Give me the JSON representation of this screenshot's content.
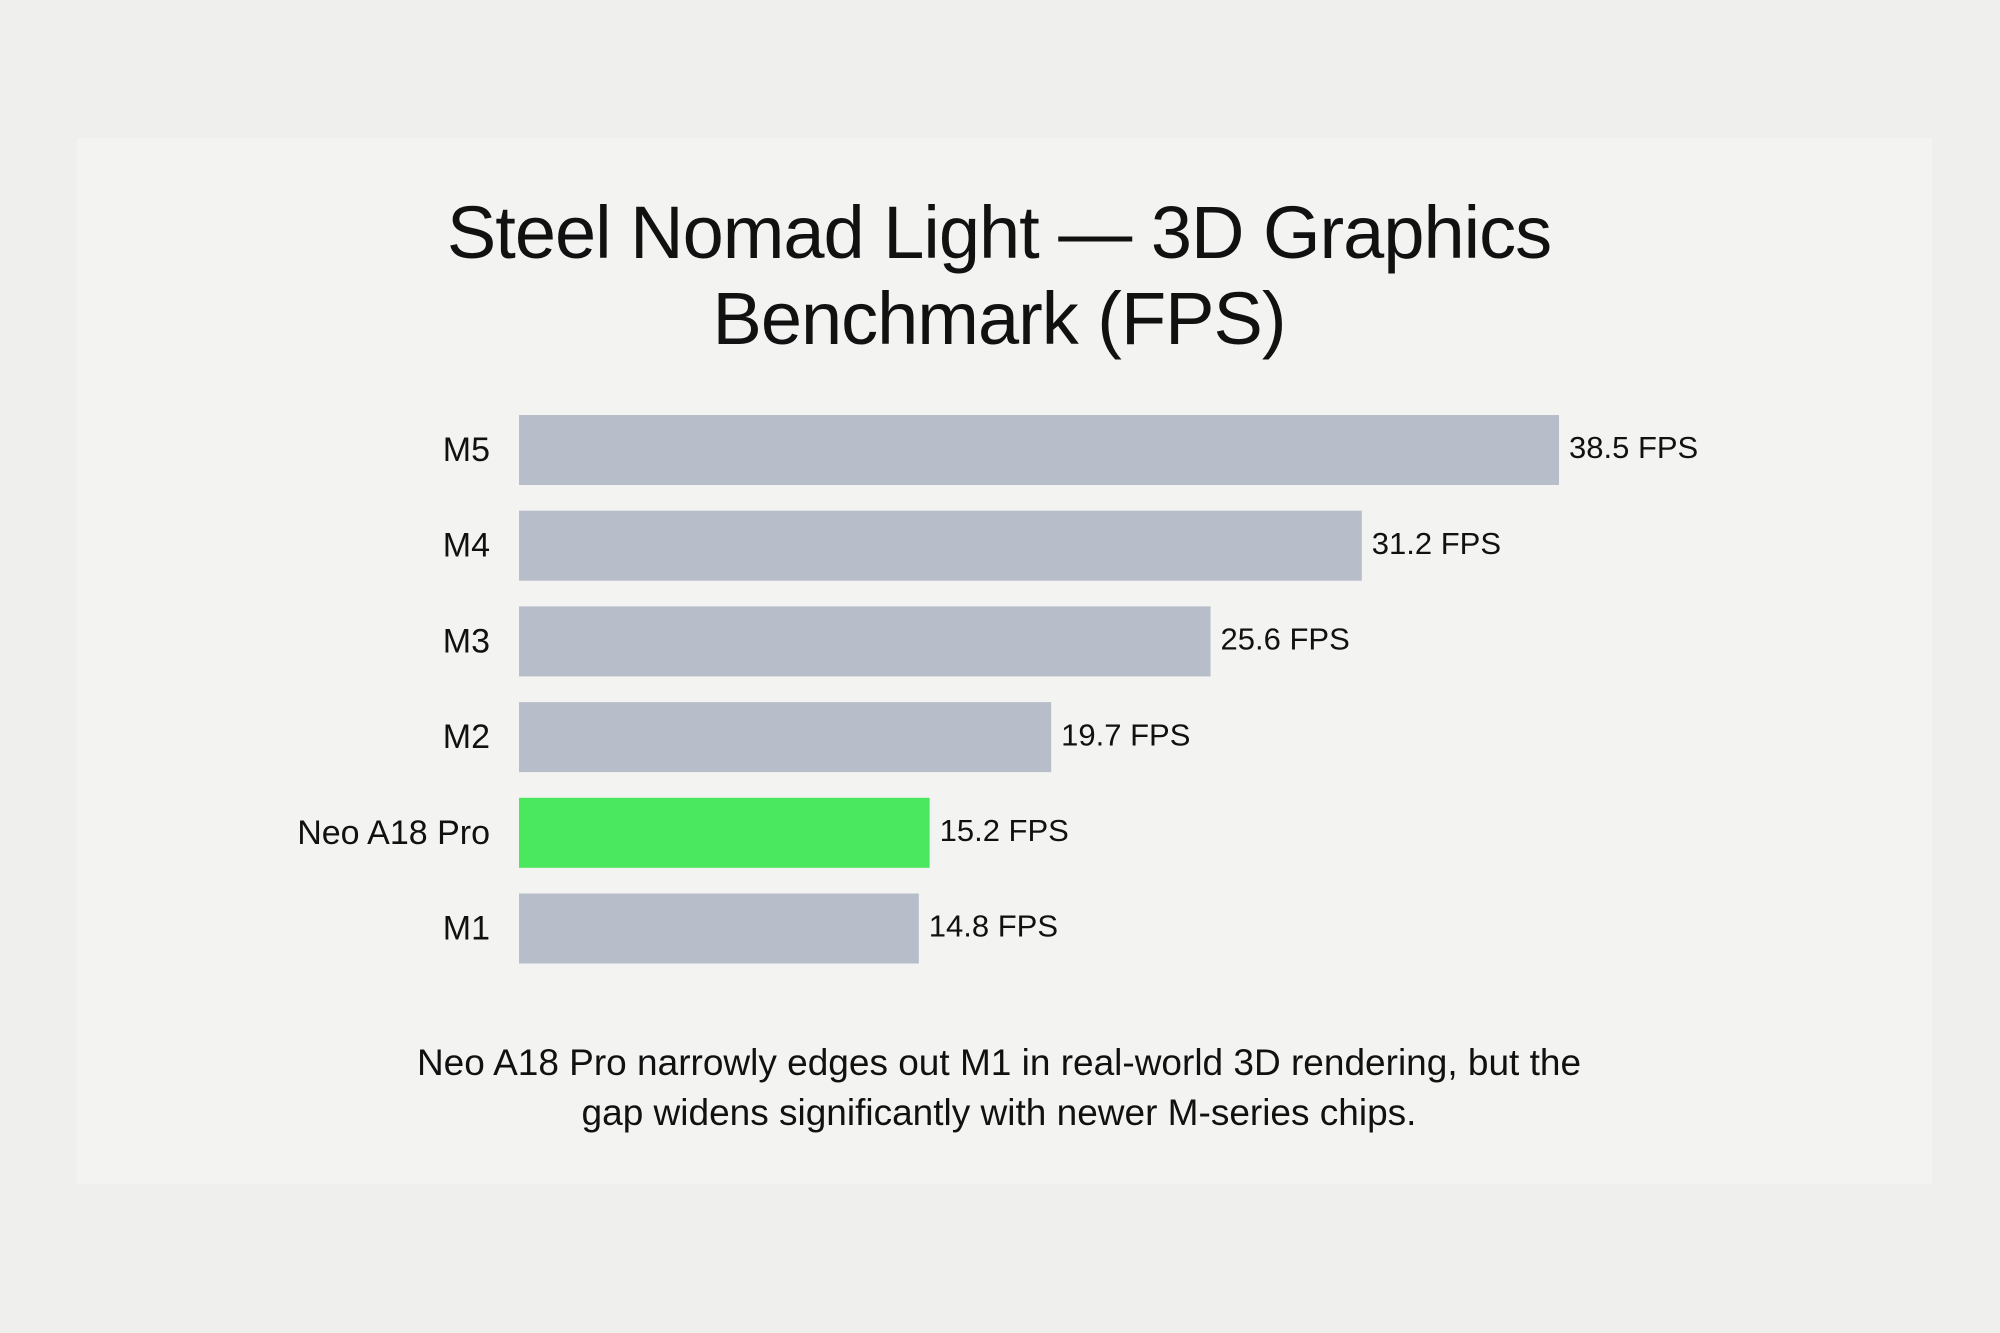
{
  "chart_data": {
    "type": "bar",
    "orientation": "horizontal",
    "title": "Steel Nomad Light — 3D Graphics Benchmark (FPS)",
    "categories": [
      "M5",
      "M4",
      "M3",
      "M2",
      "Neo A18 Pro",
      "M1"
    ],
    "values": [
      38.5,
      31.2,
      25.6,
      19.7,
      15.2,
      14.8
    ],
    "value_labels": [
      "38.5 FPS",
      "31.2 FPS",
      "25.6 FPS",
      "19.7 FPS",
      "15.2 FPS",
      "14.8 FPS"
    ],
    "colors": [
      "#b7bdc9",
      "#b7bdc9",
      "#b7bdc9",
      "#b7bdc9",
      "#4ae85e",
      "#b7bdc9"
    ],
    "annotation": "Neo A18 Pro narrowly edges out M1 in real-world 3D rendering, but the gap widens significantly with newer M-series chips."
  }
}
